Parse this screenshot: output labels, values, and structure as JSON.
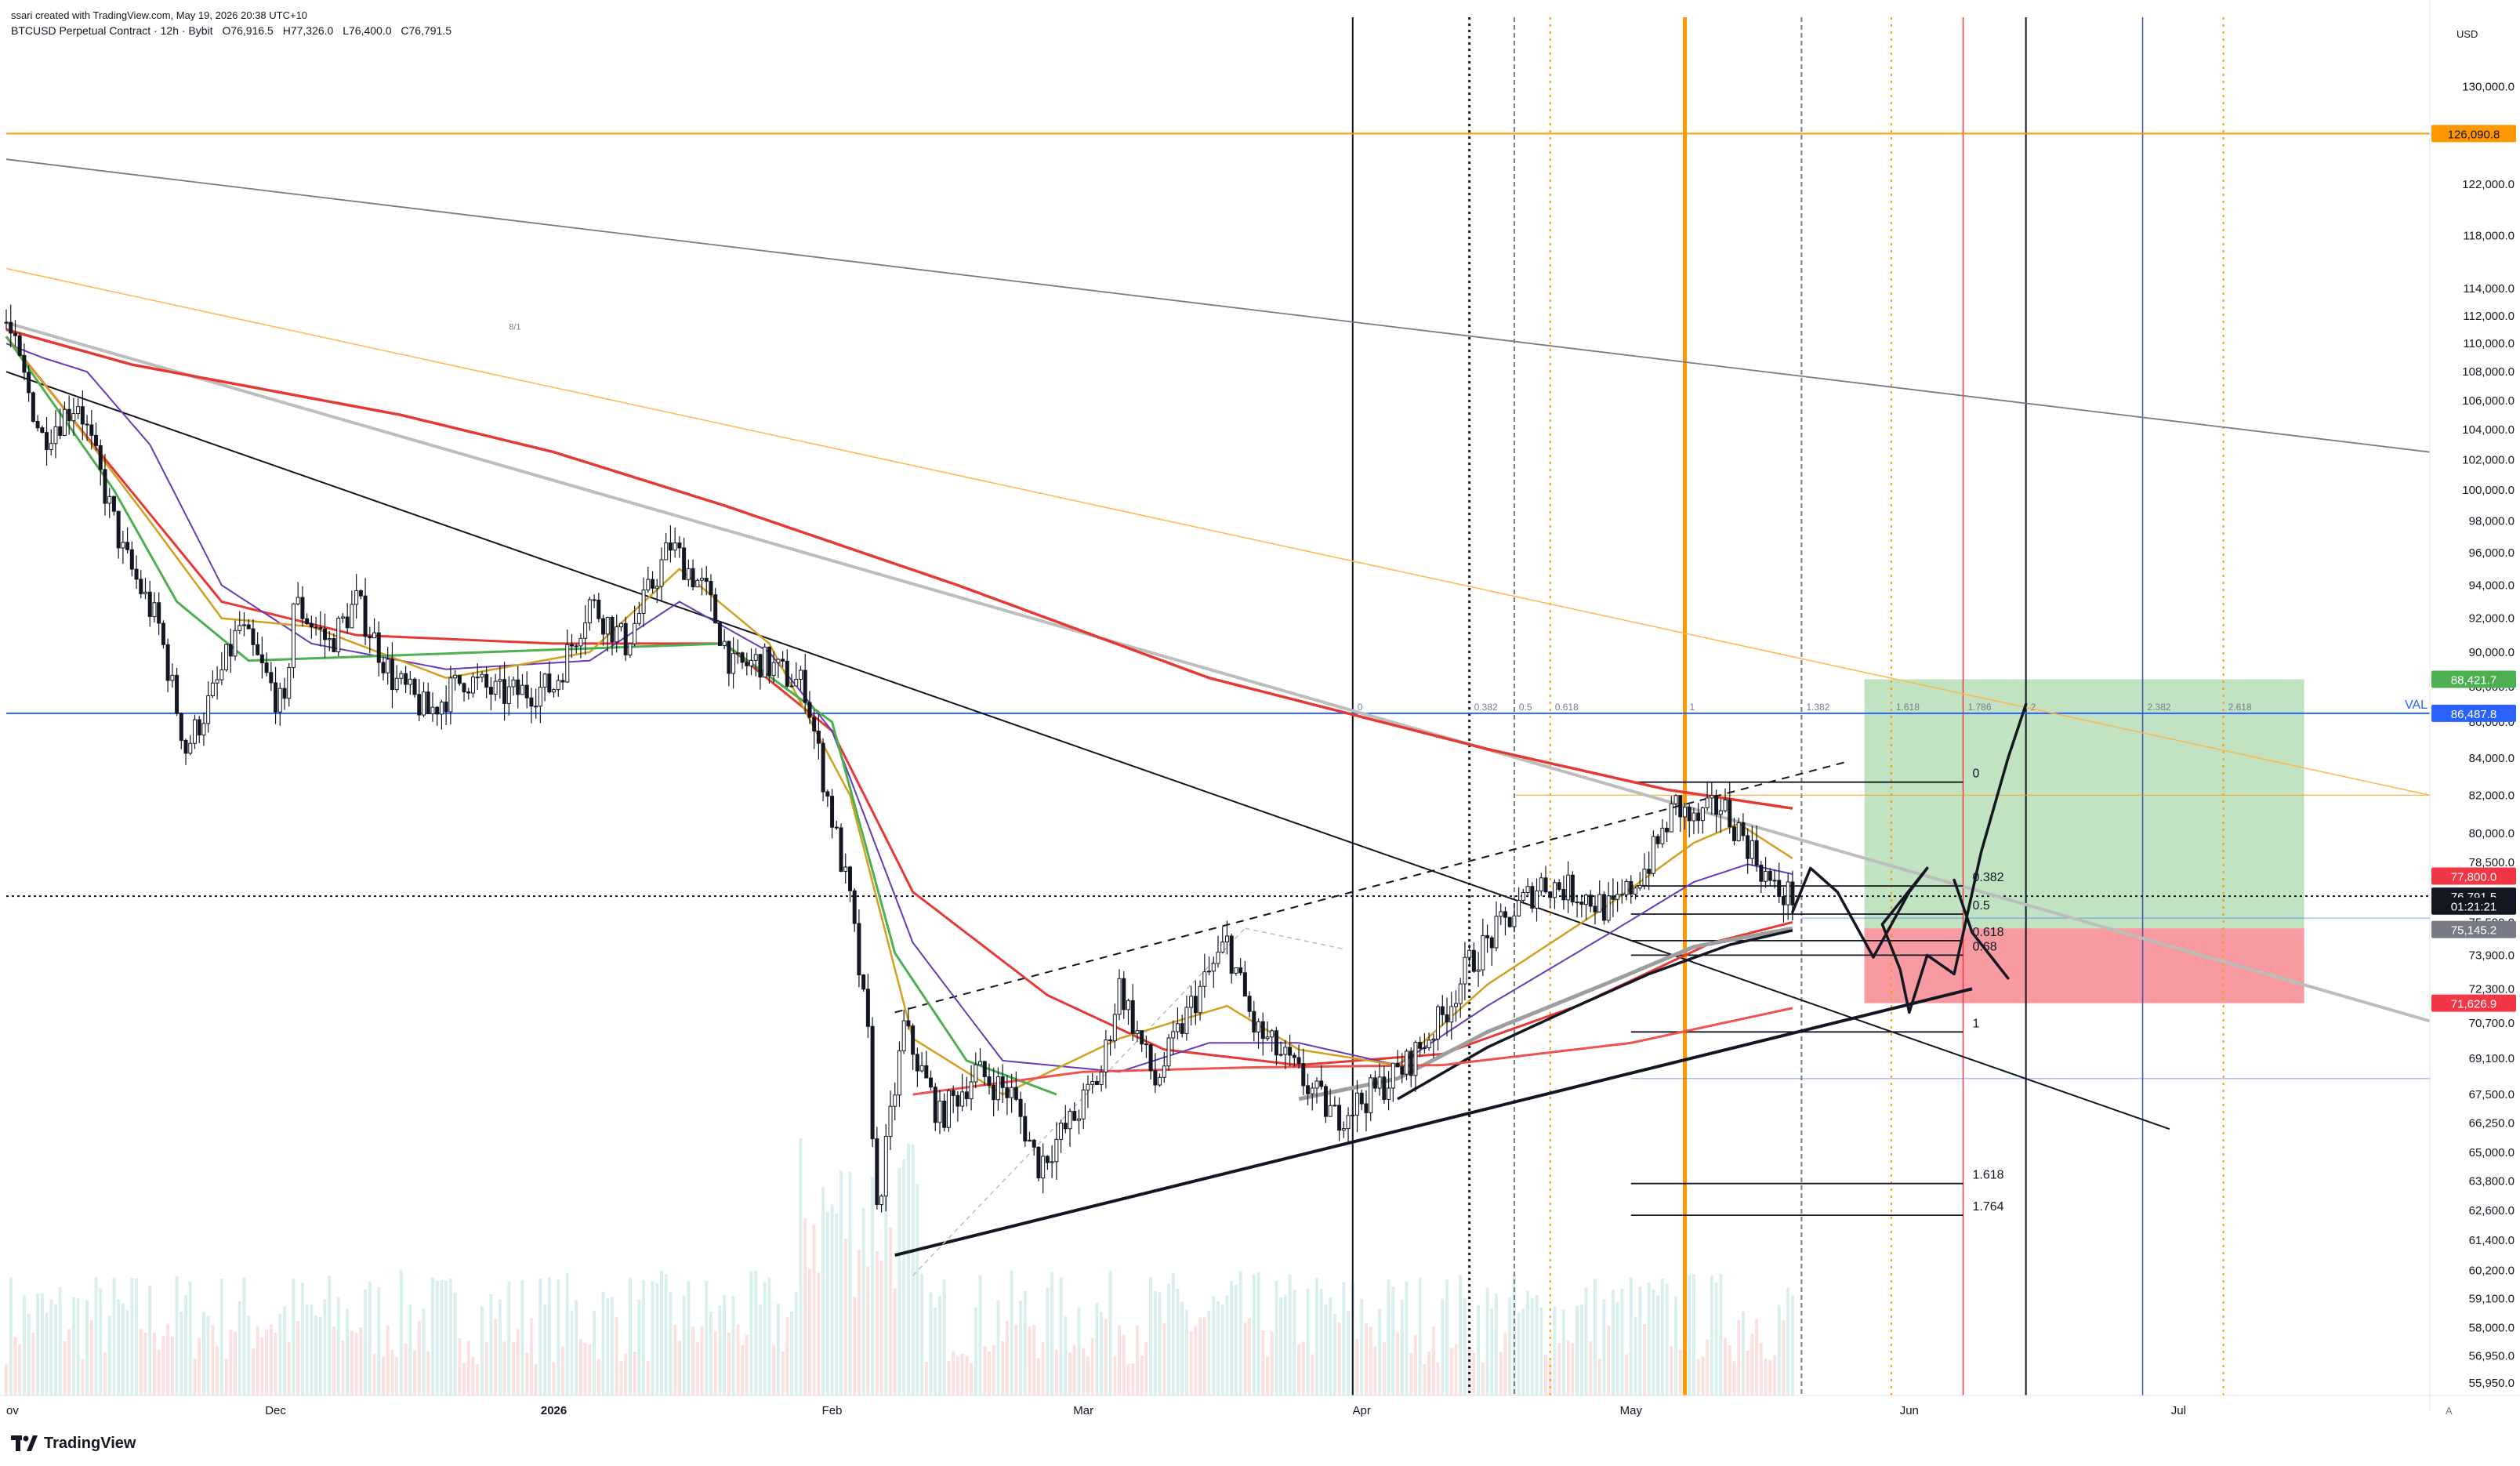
{
  "header": {
    "attribution": "ssari created with TradingView.com, May 19, 2026 20:38 UTC+10",
    "symbol": "BTCUSD Perpetual Contract · 12h · Bybit",
    "open": "O76,916.5",
    "high": "H77,326.0",
    "low": "L76,400.0",
    "close": "C76,791.5"
  },
  "logo": {
    "text": "TradingView"
  },
  "colors": {
    "up": "#26a69a",
    "down": "#ef5350",
    "ema_red": "#e53935",
    "ema_purple": "#673ab7",
    "ema_orange": "#d1a020",
    "ema_green": "#4caf50",
    "orange_line": "#ff9800",
    "blue_line": "#2962ff",
    "tp_zone": "#4caf50",
    "sl_zone": "#f23645"
  },
  "chart_data": {
    "type": "candlestick",
    "interval": "12h",
    "axis_unit": "USD",
    "y_scale": "log",
    "ylim": [
      55500,
      136000
    ],
    "x_range": [
      "2025-11-01",
      "2026-07-29"
    ],
    "x_ticks": [
      {
        "date": "2025-11-01",
        "label": "ov"
      },
      {
        "date": "2025-12-01",
        "label": "Dec"
      },
      {
        "date": "2026-01-01",
        "label": "2026"
      },
      {
        "date": "2026-02-01",
        "label": "Feb"
      },
      {
        "date": "2026-03-01",
        "label": "Mar"
      },
      {
        "date": "2026-04-01",
        "label": "Apr"
      },
      {
        "date": "2026-05-01",
        "label": "May"
      },
      {
        "date": "2026-06-01",
        "label": "Jun"
      },
      {
        "date": "2026-07-01",
        "label": "Jul"
      }
    ],
    "y_ticks": [
      130000,
      126000,
      122000,
      118000,
      114000,
      112000,
      110000,
      108000,
      106000,
      104000,
      102000,
      100000,
      98000,
      96000,
      94000,
      92000,
      90000,
      88000,
      86000,
      84000,
      82000,
      80000,
      78500,
      77000,
      75500,
      73900,
      72300,
      70700,
      69100,
      67500,
      66250,
      65000,
      63800,
      62600,
      61400,
      60200,
      59100,
      58000,
      56950,
      55950
    ],
    "y_tick_labels": [
      "130,000.0",
      "126,000.0",
      "122,000.0",
      "118,000.0",
      "114,000.0",
      "112,000.0",
      "110,000.0",
      "108,000.0",
      "106,000.0",
      "104,000.0",
      "102,000.0",
      "100,000.0",
      "98,000.0",
      "96,000.0",
      "94,000.0",
      "92,000.0",
      "90,000.0",
      "88,000.0",
      "86,000.0",
      "84,000.0",
      "82,000.0",
      "80,000.0",
      "78,500.0",
      "77,000.0",
      "75,500.0",
      "73,900.0",
      "72,300.0",
      "70,700.0",
      "69,100.0",
      "67,500.0",
      "66,250.0",
      "65,000.0",
      "63,800.0",
      "62,600.0",
      "61,400.0",
      "60,200.0",
      "59,100.0",
      "58,000.0",
      "56,950.0",
      "55,950.0"
    ],
    "price_anchors": [
      [
        "2025-11-01",
        111500
      ],
      [
        "2025-11-05",
        103500
      ],
      [
        "2025-11-09",
        106000
      ],
      [
        "2025-11-14",
        96000
      ],
      [
        "2025-11-18",
        91500
      ],
      [
        "2025-11-21",
        84500
      ],
      [
        "2025-11-24",
        87500
      ],
      [
        "2025-11-27",
        91500
      ],
      [
        "2025-12-02",
        86500
      ],
      [
        "2025-12-03",
        93000
      ],
      [
        "2025-12-07",
        90500
      ],
      [
        "2025-12-10",
        93000
      ],
      [
        "2025-12-14",
        88500
      ],
      [
        "2025-12-18",
        86500
      ],
      [
        "2025-12-22",
        88500
      ],
      [
        "2025-12-26",
        87500
      ],
      [
        "2026-01-01",
        88000
      ],
      [
        "2026-01-05",
        93000
      ],
      [
        "2026-01-09",
        90500
      ],
      [
        "2026-01-14",
        96500
      ],
      [
        "2026-01-18",
        93500
      ],
      [
        "2026-01-21",
        89000
      ],
      [
        "2026-01-24",
        89500
      ],
      [
        "2026-01-29",
        88000
      ],
      [
        "2026-01-31",
        83000
      ],
      [
        "2026-02-03",
        76500
      ],
      [
        "2026-02-05",
        70000
      ],
      [
        "2026-02-06",
        62500
      ],
      [
        "2026-02-09",
        70500
      ],
      [
        "2026-02-13",
        66500
      ],
      [
        "2026-02-17",
        68500
      ],
      [
        "2026-02-21",
        67500
      ],
      [
        "2026-02-24",
        64500
      ],
      [
        "2026-02-28",
        66500
      ],
      [
        "2026-03-03",
        68500
      ],
      [
        "2026-03-05",
        72500
      ],
      [
        "2026-03-09",
        68000
      ],
      [
        "2026-03-13",
        71500
      ],
      [
        "2026-03-17",
        74500
      ],
      [
        "2026-03-20",
        70500
      ],
      [
        "2026-03-24",
        68800
      ],
      [
        "2026-03-29",
        66500
      ],
      [
        "2026-04-02",
        67500
      ],
      [
        "2026-04-06",
        68800
      ],
      [
        "2026-04-10",
        71000
      ],
      [
        "2026-04-13",
        73500
      ],
      [
        "2026-04-17",
        75500
      ],
      [
        "2026-04-21",
        77500
      ],
      [
        "2026-04-25",
        77000
      ],
      [
        "2026-04-29",
        76000
      ],
      [
        "2026-05-03",
        78500
      ],
      [
        "2026-05-06",
        81500
      ],
      [
        "2026-05-08",
        80500
      ],
      [
        "2026-05-11",
        81500
      ],
      [
        "2026-05-14",
        79500
      ],
      [
        "2026-05-17",
        77000
      ],
      [
        "2026-05-19",
        76791.5
      ]
    ],
    "ema_anchors": {
      "red_long": [
        [
          "2025-11-01",
          111000
        ],
        [
          "2025-11-15",
          108500
        ],
        [
          "2025-12-15",
          105000
        ],
        [
          "2026-01-01",
          102500
        ],
        [
          "2026-01-20",
          99000
        ],
        [
          "2026-02-15",
          94000
        ],
        [
          "2026-03-15",
          88500
        ],
        [
          "2026-04-15",
          84500
        ],
        [
          "2026-05-05",
          82300
        ],
        [
          "2026-05-19",
          81300
        ]
      ],
      "red_mid": [
        [
          "2025-11-01",
          110500
        ],
        [
          "2025-11-10",
          103500
        ],
        [
          "2025-11-25",
          93000
        ],
        [
          "2025-12-10",
          91000
        ],
        [
          "2026-01-01",
          90500
        ],
        [
          "2026-01-20",
          90500
        ],
        [
          "2026-02-01",
          85500
        ],
        [
          "2026-02-10",
          77000
        ],
        [
          "2026-02-25",
          72000
        ],
        [
          "2026-03-10",
          69500
        ],
        [
          "2026-03-25",
          68800
        ],
        [
          "2026-04-10",
          69300
        ],
        [
          "2026-04-25",
          71500
        ],
        [
          "2026-05-10",
          74500
        ],
        [
          "2026-05-19",
          75500
        ]
      ],
      "purple": [
        [
          "2025-11-01",
          110000
        ],
        [
          "2025-11-05",
          109000
        ],
        [
          "2025-11-10",
          108000
        ],
        [
          "2025-11-17",
          103000
        ],
        [
          "2025-11-25",
          94000
        ],
        [
          "2025-12-05",
          90500
        ],
        [
          "2025-12-20",
          89000
        ],
        [
          "2026-01-05",
          89500
        ],
        [
          "2026-01-15",
          93000
        ],
        [
          "2026-01-25",
          90000
        ],
        [
          "2026-02-01",
          85500
        ],
        [
          "2026-02-10",
          74500
        ],
        [
          "2026-02-20",
          69000
        ],
        [
          "2026-03-05",
          68500
        ],
        [
          "2026-03-15",
          69800
        ],
        [
          "2026-03-25",
          69800
        ],
        [
          "2026-04-05",
          68800
        ],
        [
          "2026-04-15",
          71500
        ],
        [
          "2026-04-28",
          74800
        ],
        [
          "2026-05-08",
          77500
        ],
        [
          "2026-05-14",
          78400
        ],
        [
          "2026-05-19",
          77900
        ]
      ],
      "orange": [
        [
          "2025-11-01",
          110500
        ],
        [
          "2025-11-08",
          105000
        ],
        [
          "2025-11-17",
          98000
        ],
        [
          "2025-11-25",
          92000
        ],
        [
          "2025-12-05",
          91500
        ],
        [
          "2025-12-20",
          88500
        ],
        [
          "2026-01-05",
          90000
        ],
        [
          "2026-01-15",
          95000
        ],
        [
          "2026-01-25",
          90500
        ],
        [
          "2026-02-03",
          82000
        ],
        [
          "2026-02-10",
          70000
        ],
        [
          "2026-02-20",
          67500
        ],
        [
          "2026-03-05",
          70000
        ],
        [
          "2026-03-17",
          71500
        ],
        [
          "2026-03-25",
          69500
        ],
        [
          "2026-04-05",
          68800
        ],
        [
          "2026-04-15",
          72500
        ],
        [
          "2026-04-28",
          76200
        ],
        [
          "2026-05-08",
          79500
        ],
        [
          "2026-05-13",
          80500
        ],
        [
          "2026-05-19",
          78700
        ]
      ],
      "green": [
        [
          "2025-11-01",
          110500
        ],
        [
          "2025-11-06",
          106000
        ],
        [
          "2025-11-13",
          100000
        ],
        [
          "2025-11-20",
          93000
        ],
        [
          "2025-11-28",
          89500
        ],
        [
          "2026-01-20",
          90500
        ],
        [
          "2026-02-01",
          86000
        ],
        [
          "2026-02-08",
          74000
        ],
        [
          "2026-02-16",
          69000
        ],
        [
          "2026-02-26",
          67500
        ]
      ],
      "gray_200": [
        [
          "2026-03-25",
          67300
        ],
        [
          "2026-04-05",
          68200
        ],
        [
          "2026-04-15",
          70300
        ],
        [
          "2026-04-28",
          72500
        ],
        [
          "2026-05-08",
          74300
        ],
        [
          "2026-05-19",
          75200
        ]
      ],
      "black_thick": [
        [
          "2026-04-05",
          67300
        ],
        [
          "2026-04-15",
          69600
        ],
        [
          "2026-04-25",
          71500
        ],
        [
          "2026-05-03",
          73000
        ],
        [
          "2026-05-12",
          74400
        ],
        [
          "2026-05-19",
          75100
        ]
      ],
      "salmon": [
        [
          "2026-02-10",
          67500
        ],
        [
          "2026-03-01",
          68500
        ],
        [
          "2026-03-20",
          68700
        ],
        [
          "2026-04-10",
          68800
        ],
        [
          "2026-05-01",
          69800
        ],
        [
          "2026-05-19",
          71400
        ]
      ]
    },
    "price_scale_labels": [
      {
        "value": 126090.8,
        "label": "126,090.8",
        "bg": "#ff9800",
        "fg": "#131722"
      },
      {
        "value": 88421.7,
        "label": "88,421.7",
        "bg": "#4caf50",
        "fg": "#ffffff"
      },
      {
        "value": 86487.8,
        "label": "86,487.8",
        "bg": "#2962ff",
        "fg": "#ffffff"
      },
      {
        "value": 77800.0,
        "label": "77,800.0",
        "bg": "#f23645",
        "fg": "#ffffff"
      },
      {
        "value": 76791.5,
        "label": "76,791.5",
        "bg": "#131722",
        "fg": "#ffffff"
      },
      {
        "value": 76300,
        "label": "01:21:21",
        "bg": "#131722",
        "fg": "#ffffff"
      },
      {
        "value": 75145.2,
        "label": "75,145.2",
        "bg": "#787b86",
        "fg": "#ffffff"
      },
      {
        "value": 71626.9,
        "label": "71,626.9",
        "bg": "#f23645",
        "fg": "#ffffff"
      }
    ],
    "horizontal_lines": [
      {
        "price": 126090.8,
        "color": "#ff9800",
        "label": ""
      },
      {
        "price": 86487.8,
        "color": "#2962ff",
        "label": "VAL"
      },
      {
        "price": 76791.5,
        "color": "#131722",
        "label": "",
        "style": "dotted"
      }
    ],
    "position": {
      "entry": 75200,
      "take_profit": 88421.7,
      "stop_loss": 71626.9,
      "start": "2026-05-27",
      "end": "2026-07-15"
    },
    "fib_levels": [
      {
        "ratio": "0",
        "price": 82700
      },
      {
        "ratio": "0.382",
        "price": 77300
      },
      {
        "ratio": "0.5",
        "price": 75900
      },
      {
        "ratio": "0.618",
        "price": 74600
      },
      {
        "ratio": "0.68",
        "price": 73900
      },
      {
        "ratio": "1",
        "price": 70300
      },
      {
        "ratio": "1.618",
        "price": 63700
      },
      {
        "ratio": "1.764",
        "price": 62400
      }
    ],
    "time_fib_labels": [
      {
        "date": "2026-03-31",
        "label": "0"
      },
      {
        "date": "2026-04-13",
        "label": "0.382"
      },
      {
        "date": "2026-04-18",
        "label": "0.5"
      },
      {
        "date": "2026-04-22",
        "label": "0.618"
      },
      {
        "date": "2026-05-07",
        "label": "1"
      },
      {
        "date": "2026-05-20",
        "label": "1.382"
      },
      {
        "date": "2026-05-30",
        "label": "1.618"
      },
      {
        "date": "2026-06-07",
        "label": "1.786"
      },
      {
        "date": "2026-06-14",
        "label": "2"
      },
      {
        "date": "2026-06-27",
        "label": "2.382"
      },
      {
        "date": "2026-07-06",
        "label": "2.618"
      }
    ],
    "trendline_labels": [
      {
        "date": "2025-12-27",
        "price": 111000,
        "label": "8/1"
      }
    ],
    "volume_scale": 1
  }
}
